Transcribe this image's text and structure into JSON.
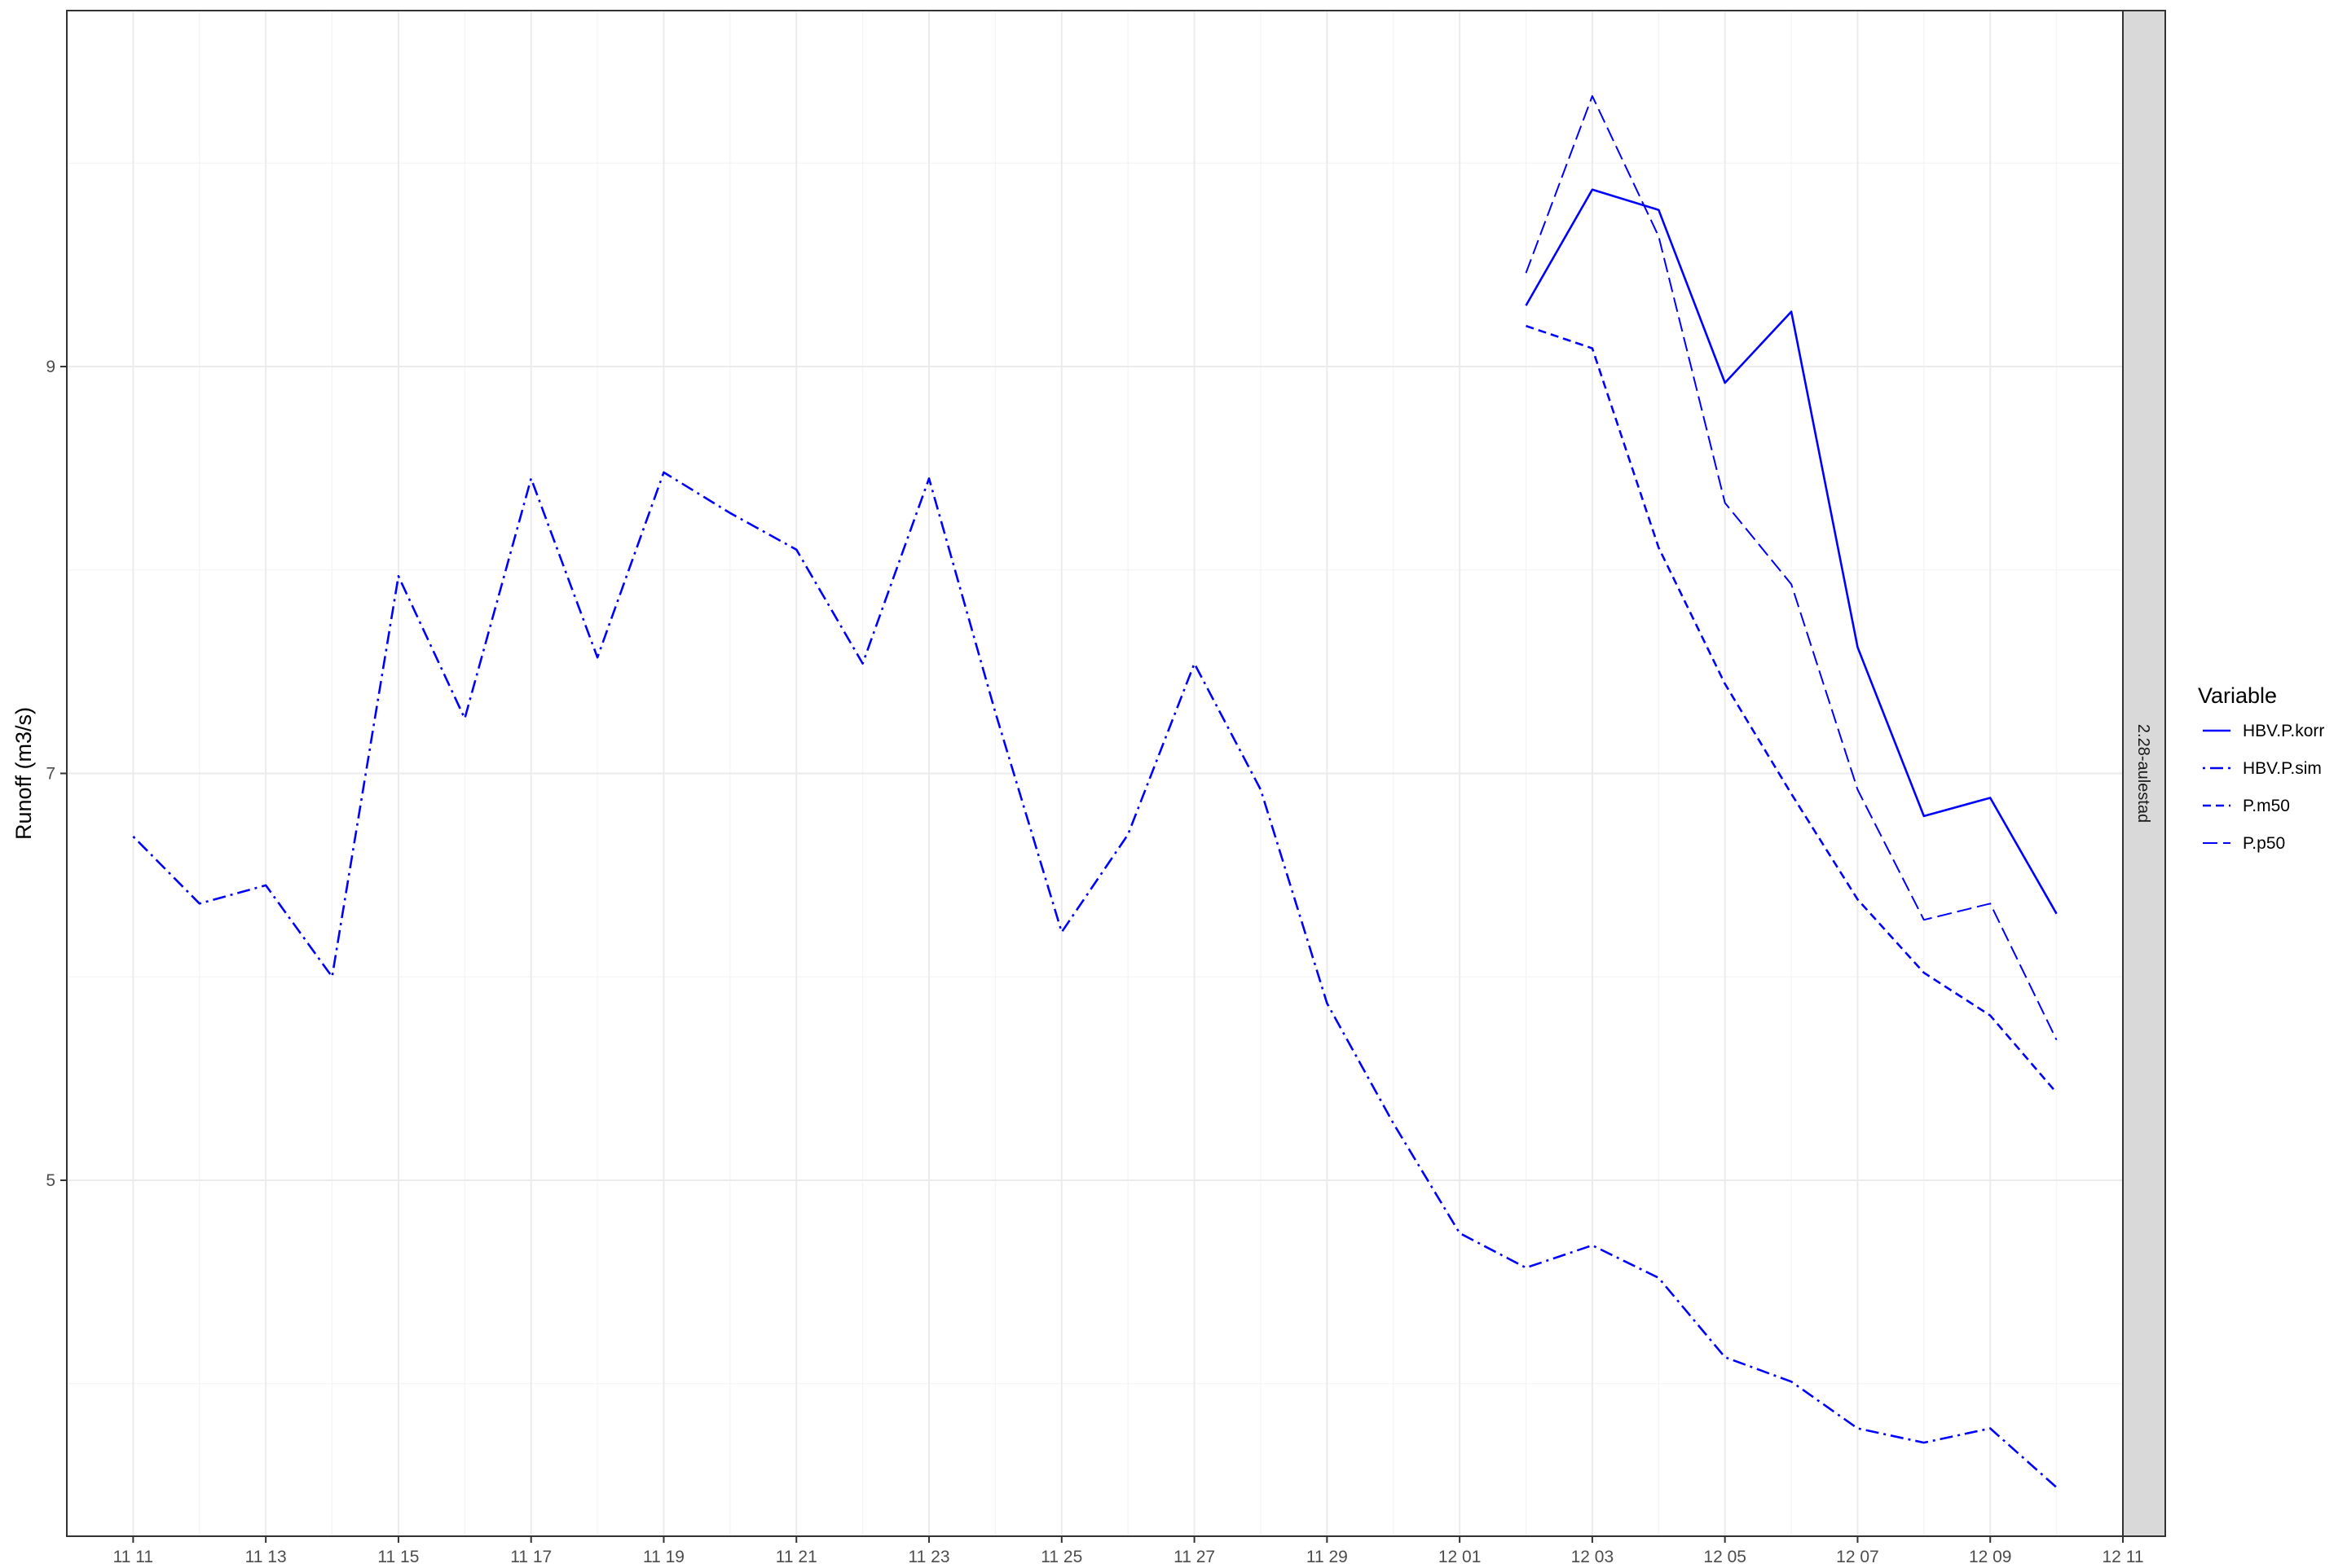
{
  "chart_data": {
    "type": "line",
    "ylabel": "Runoff (m3/s)",
    "xlabel": "",
    "facet_label": "2.28-aulestad",
    "x_tick_labels": [
      "11 11",
      "11 13",
      "11 15",
      "11 17",
      "11 19",
      "11 21",
      "11 23",
      "11 25",
      "11 27",
      "11 29",
      "12 01",
      "12 03",
      "12 05",
      "12 07",
      "12 09",
      "12 11"
    ],
    "y_tick_labels": [
      "5",
      "7",
      "9"
    ],
    "y_ticks": [
      5,
      7,
      9
    ],
    "ylim": [
      3.25,
      10.75
    ],
    "xlim": [
      "11-10",
      "12-11"
    ],
    "grid": true,
    "legend": {
      "title": "Variable",
      "position": "right"
    },
    "line_color": "#0000ff",
    "series": [
      {
        "name": "HBV.P.korr",
        "linetype": "solid",
        "x": [
          "12-02",
          "12-03",
          "12-04",
          "12-05",
          "12-06",
          "12-07",
          "12-08",
          "12-09",
          "12-10"
        ],
        "y": [
          9.3,
          9.87,
          9.77,
          8.92,
          9.27,
          7.62,
          6.79,
          6.88,
          6.31
        ]
      },
      {
        "name": "HBV.P.sim",
        "linetype": "dotdash",
        "x": [
          "11-11",
          "11-12",
          "11-13",
          "11-14",
          "11-15",
          "11-16",
          "11-17",
          "11-18",
          "11-19",
          "11-20",
          "11-21",
          "11-22",
          "11-23",
          "11-24",
          "11-25",
          "11-26",
          "11-27",
          "11-28",
          "11-29",
          "11-30",
          "12-01",
          "12-02",
          "12-03",
          "12-04",
          "12-05",
          "12-06",
          "12-07",
          "12-08",
          "12-09",
          "12-10"
        ],
        "y": [
          6.69,
          6.36,
          6.45,
          6.0,
          7.97,
          7.27,
          8.45,
          7.57,
          8.48,
          8.28,
          8.1,
          7.54,
          8.45,
          7.3,
          6.22,
          6.7,
          7.54,
          6.92,
          5.87,
          5.28,
          4.74,
          4.57,
          4.68,
          4.52,
          4.13,
          4.01,
          3.78,
          3.71,
          3.78,
          3.49
        ]
      },
      {
        "name": "P.m50",
        "linetype": "dashed",
        "x": [
          "12-02",
          "12-03",
          "12-04",
          "12-05",
          "12-06",
          "12-07",
          "12-08",
          "12-09",
          "12-10"
        ],
        "y": [
          9.2,
          9.09,
          8.11,
          7.44,
          6.9,
          6.38,
          6.02,
          5.81,
          5.43
        ]
      },
      {
        "name": "P.p50",
        "linetype": "longdash",
        "x": [
          "12-02",
          "12-03",
          "12-04",
          "12-05",
          "12-06",
          "12-07",
          "12-08",
          "12-09",
          "12-10"
        ],
        "y": [
          9.46,
          10.33,
          9.64,
          8.33,
          7.93,
          6.92,
          6.28,
          6.36,
          5.69
        ]
      }
    ]
  }
}
